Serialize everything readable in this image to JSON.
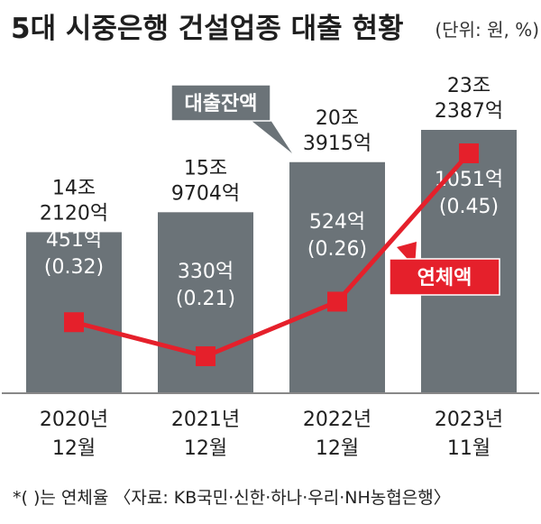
{
  "chart_data": {
    "type": "bar",
    "title": "5대 시중은행 건설업종 대출 현황",
    "unit": "(단위: 원, %)",
    "categories": [
      [
        "2020년",
        "12월"
      ],
      [
        "2021년",
        "12월"
      ],
      [
        "2022년",
        "12월"
      ],
      [
        "2023년",
        "11월"
      ]
    ],
    "series": [
      {
        "name": "대출잔액",
        "type": "bar",
        "values": [
          142120,
          159704,
          203915,
          232387
        ],
        "labels": [
          [
            "14조",
            "2120억"
          ],
          [
            "15조",
            "9704억"
          ],
          [
            "20조",
            "3915억"
          ],
          [
            "23조",
            "2387억"
          ]
        ],
        "color": "#6b7378"
      },
      {
        "name": "연체액",
        "type": "line",
        "values": [
          451,
          330,
          524,
          1051
        ],
        "labels": [
          "451억",
          "330억",
          "524억",
          "1051억"
        ],
        "rates": [
          "(0.32)",
          "(0.21)",
          "(0.26)",
          "(0.45)"
        ],
        "rate_values": [
          0.32,
          0.21,
          0.26,
          0.45
        ],
        "color": "#e5202b"
      }
    ],
    "footnote": "*(  )는 연체율 〈자료: KB국민·신한·하나·우리·NH농협은행〉"
  }
}
